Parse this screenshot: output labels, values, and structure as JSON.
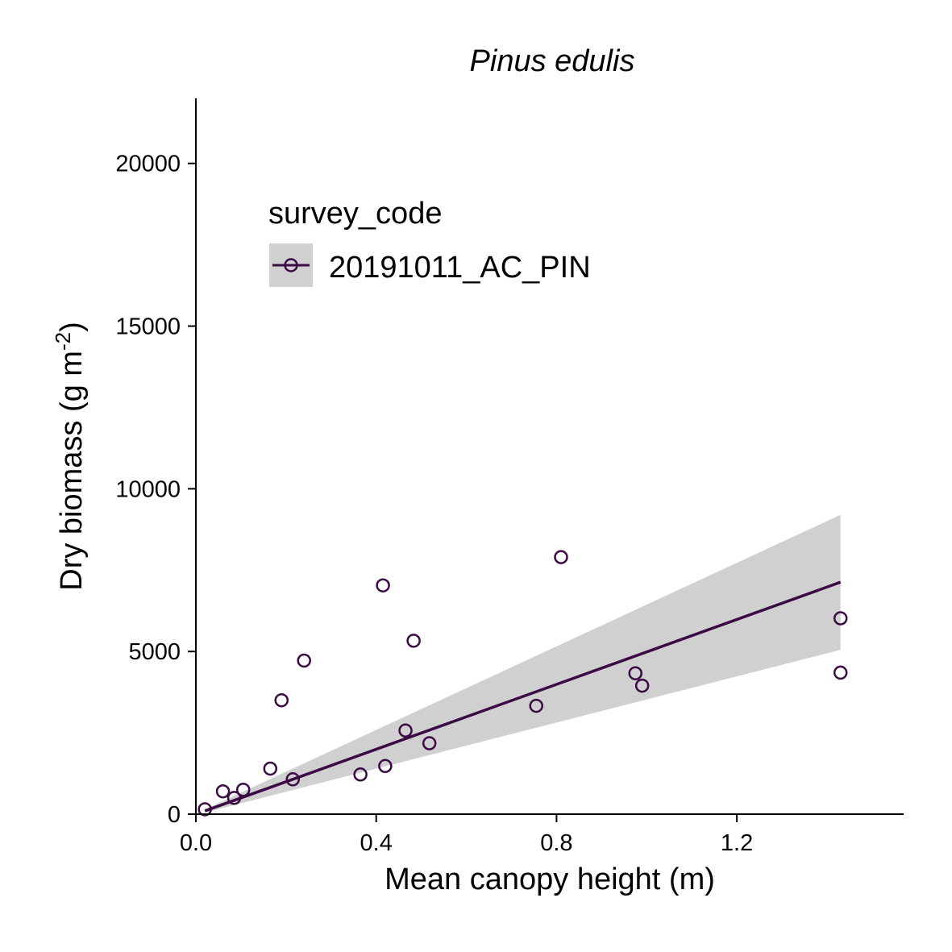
{
  "chart_data": {
    "type": "scatter",
    "title": "Pinus edulis",
    "xlabel": "Mean canopy height (m)",
    "ylabel": "Dry biomass (g m",
    "ylabel_superscript": "-2",
    "ylabel_suffix": ")",
    "xlim": [
      0.0,
      1.57
    ],
    "ylim": [
      0,
      22000
    ],
    "x_ticks": [
      0.0,
      0.4,
      0.8,
      1.2
    ],
    "x_tick_labels": [
      "0.0",
      "0.4",
      "0.8",
      "1.2"
    ],
    "y_ticks": [
      0,
      5000,
      10000,
      15000,
      20000
    ],
    "y_tick_labels": [
      "0",
      "5000",
      "10000",
      "15000",
      "20000"
    ],
    "grid": false,
    "legend": {
      "title": "survey_code",
      "placement": "top-left",
      "entries": [
        "20191011_AC_PIN"
      ]
    },
    "series": [
      {
        "name": "20191011_AC_PIN",
        "color": "#3b0a45",
        "points": [
          {
            "x": 0.02,
            "y": 150
          },
          {
            "x": 0.06,
            "y": 700
          },
          {
            "x": 0.085,
            "y": 500
          },
          {
            "x": 0.105,
            "y": 750
          },
          {
            "x": 0.165,
            "y": 1400
          },
          {
            "x": 0.19,
            "y": 3500
          },
          {
            "x": 0.215,
            "y": 1070
          },
          {
            "x": 0.24,
            "y": 4720
          },
          {
            "x": 0.365,
            "y": 1220
          },
          {
            "x": 0.415,
            "y": 7030
          },
          {
            "x": 0.42,
            "y": 1480
          },
          {
            "x": 0.465,
            "y": 2570
          },
          {
            "x": 0.483,
            "y": 5330
          },
          {
            "x": 0.518,
            "y": 2180
          },
          {
            "x": 0.755,
            "y": 3330
          },
          {
            "x": 0.81,
            "y": 7900
          },
          {
            "x": 0.975,
            "y": 4330
          },
          {
            "x": 0.99,
            "y": 3950
          },
          {
            "x": 1.43,
            "y": 6020
          },
          {
            "x": 1.43,
            "y": 4350
          }
        ],
        "fit_line": {
          "x": [
            0.02,
            1.43
          ],
          "y": [
            100,
            7130
          ]
        },
        "confidence_band": {
          "x": [
            0.02,
            1.43
          ],
          "lower": [
            50,
            5050
          ],
          "upper": [
            150,
            9200
          ],
          "color": "#d0d0d0"
        }
      }
    ]
  }
}
